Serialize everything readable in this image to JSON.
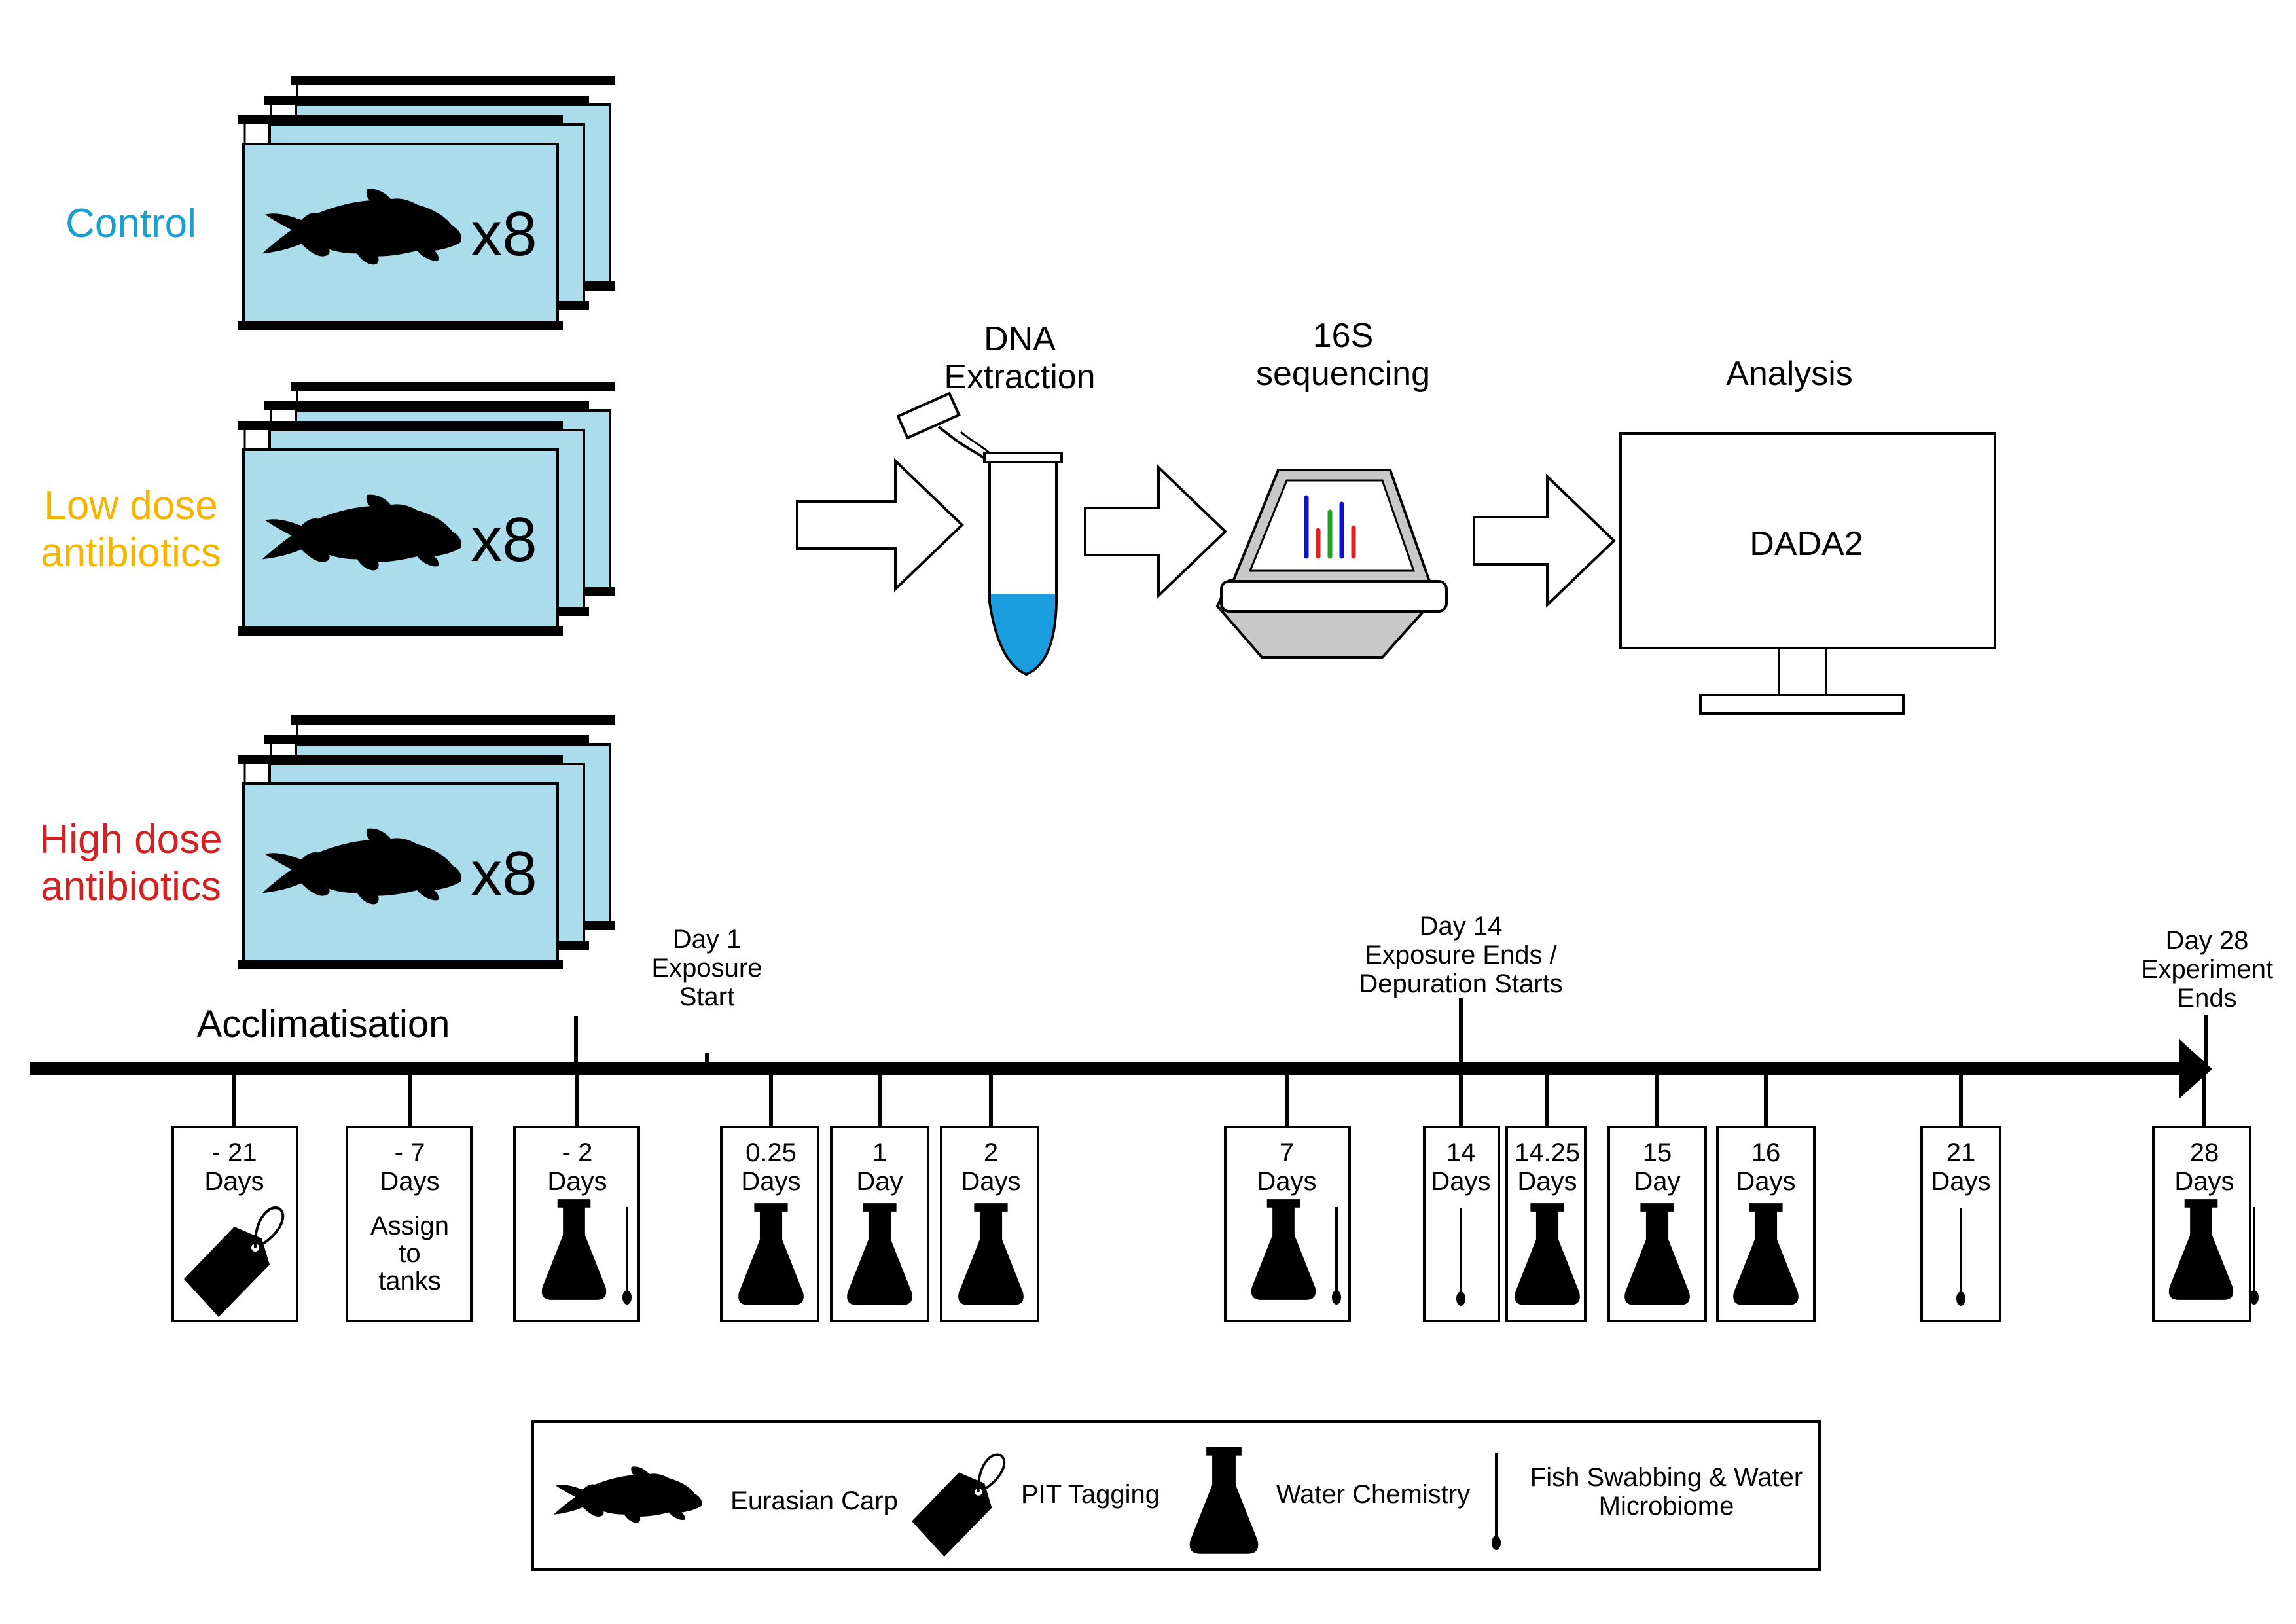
{
  "colors": {
    "control": "#1a9ed0",
    "low_dose": "#f5b400",
    "high_dose": "#d42020",
    "water": "#abdcec",
    "seq_gray": "#c8c8c8",
    "liquid_blue": "#1a9ee0"
  },
  "groups": [
    {
      "label_lines": [
        "Control"
      ],
      "multiplier": "x8",
      "color_key": "control"
    },
    {
      "label_lines": [
        "Low dose",
        "antibiotics"
      ],
      "multiplier": "x8",
      "color_key": "low_dose"
    },
    {
      "label_lines": [
        "High dose",
        "antibiotics"
      ],
      "multiplier": "x8",
      "color_key": "high_dose"
    }
  ],
  "pipeline": {
    "dna_extraction": [
      "DNA",
      "Extraction"
    ],
    "sequencing": [
      "16S",
      "sequencing"
    ],
    "analysis": "Analysis",
    "software": "DADA2"
  },
  "timeline": {
    "phase_label": "Acclimatisation",
    "milestones": [
      {
        "lines": [
          "Day 1",
          "Exposure",
          "Start"
        ]
      },
      {
        "lines": [
          "Day 14",
          "Exposure Ends /",
          "Depuration Starts"
        ]
      },
      {
        "lines": [
          "Day 28",
          "Experiment",
          "Ends"
        ]
      }
    ],
    "events": [
      {
        "lines": [
          "- 21",
          "Days"
        ],
        "icons": [
          "tag-icon"
        ]
      },
      {
        "lines": [
          "- 7",
          "Days"
        ],
        "note": [
          "Assign",
          "to",
          "tanks"
        ],
        "icons": []
      },
      {
        "lines": [
          "- 2",
          "Days"
        ],
        "icons": [
          "flask-icon",
          "swab-icon"
        ]
      },
      {
        "lines": [
          "0.25",
          "Days"
        ],
        "icons": [
          "flask-icon"
        ]
      },
      {
        "lines": [
          "1",
          "Day"
        ],
        "icons": [
          "flask-icon"
        ]
      },
      {
        "lines": [
          "2",
          "Days"
        ],
        "icons": [
          "flask-icon"
        ]
      },
      {
        "lines": [
          "7",
          "Days"
        ],
        "icons": [
          "flask-icon",
          "swab-icon"
        ]
      },
      {
        "lines": [
          "14",
          "Days"
        ],
        "icons": [
          "swab-icon"
        ]
      },
      {
        "lines": [
          "14.25",
          "Days"
        ],
        "icons": [
          "flask-icon"
        ]
      },
      {
        "lines": [
          "15",
          "Day"
        ],
        "icons": [
          "flask-icon"
        ]
      },
      {
        "lines": [
          "16",
          "Days"
        ],
        "icons": [
          "flask-icon"
        ]
      },
      {
        "lines": [
          "21",
          "Days"
        ],
        "icons": [
          "swab-icon"
        ]
      },
      {
        "lines": [
          "28",
          "Days"
        ],
        "icons": [
          "flask-icon",
          "swab-icon"
        ]
      }
    ]
  },
  "legend": {
    "items": [
      {
        "icon": "fish-icon",
        "label": [
          "Eurasian Carp"
        ]
      },
      {
        "icon": "tag-icon",
        "label": [
          "PIT Tagging"
        ]
      },
      {
        "icon": "flask-icon",
        "label": [
          "Water Chemistry"
        ]
      },
      {
        "icon": "swab-icon",
        "label": [
          "Fish Swabbing & Water",
          "Microbiome"
        ]
      }
    ]
  }
}
